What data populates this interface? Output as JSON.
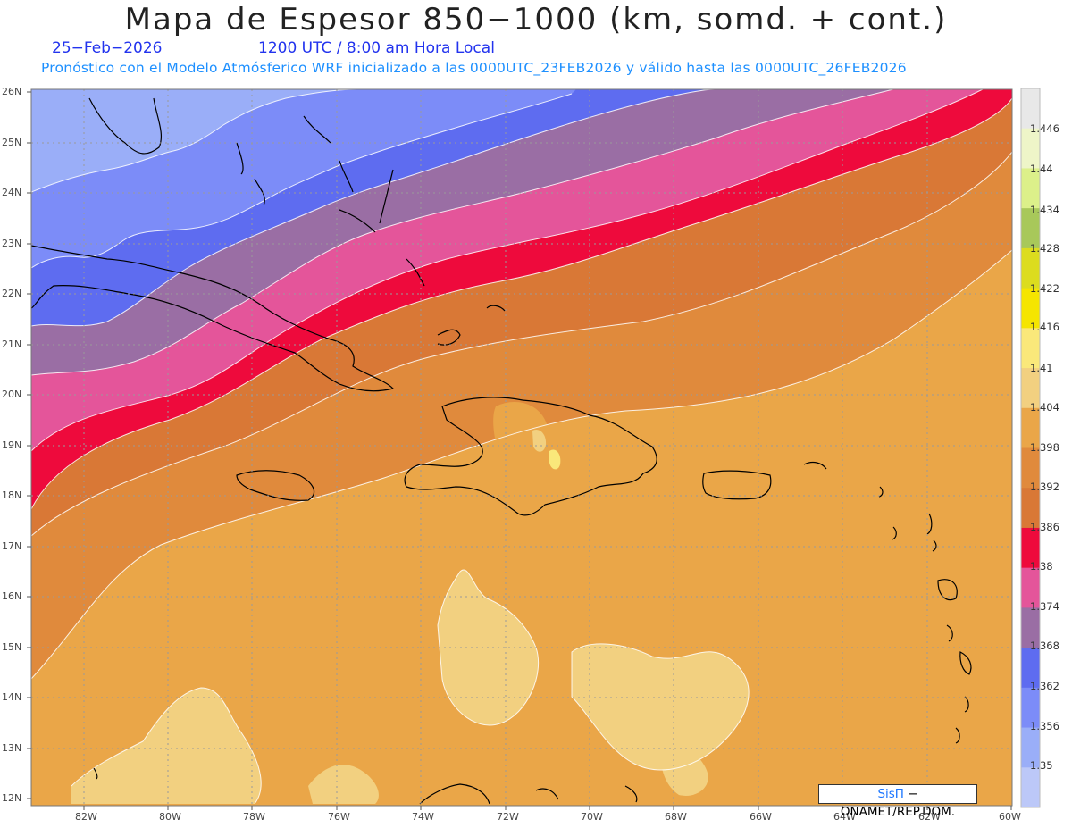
{
  "header": {
    "title": "Mapa de Espesor 850−1000 (km, somd. + cont.)",
    "date": "25−Feb−2026",
    "time": "1200 UTC / 8:00 am Hora Local",
    "forecast": "Pronóstico con el Modelo Atmósferico WRF inicializado a las 0000UTC_23FEB2026 y válido hasta las  0000UTC_26FEB2026"
  },
  "credit": {
    "brand": "SisΠ",
    "rest": " − ONAMET/REP.DOM."
  },
  "axes": {
    "lat_labels": [
      "26N",
      "25N",
      "24N",
      "23N",
      "22N",
      "21N",
      "20N",
      "19N",
      "18N",
      "17N",
      "16N",
      "15N",
      "14N",
      "13N",
      "12N"
    ],
    "lon_labels": [
      "82W",
      "80W",
      "78W",
      "76W",
      "74W",
      "72W",
      "70W",
      "68W",
      "66W",
      "64W",
      "62W",
      "60W"
    ]
  },
  "colorbar": {
    "labels": [
      "1.446",
      "1.44",
      "1.434",
      "1.428",
      "1.422",
      "1.416",
      "1.41",
      "1.404",
      "1.398",
      "1.392",
      "1.386",
      "1.38",
      "1.374",
      "1.368",
      "1.362",
      "1.356",
      "1.35"
    ],
    "colors": [
      "#e8e8e8",
      "#eef5c8",
      "#dcf08a",
      "#a8c85a",
      "#dcdc1e",
      "#f5e500",
      "#fae87a",
      "#f2d080",
      "#eaa648",
      "#e08a3c",
      "#d97836",
      "#ee0a3c",
      "#e4559a",
      "#9a6ea4",
      "#5e6cf0",
      "#7c8cf8",
      "#9aaef8",
      "#bcc8f8"
    ]
  },
  "chart_data": {
    "type": "heatmap",
    "title": "Mapa de Espesor 850−1000 (km, somd. + cont.)",
    "lon_range": [
      -83.2,
      -60
    ],
    "lat_range": [
      11.8,
      26.1
    ],
    "levels_km": [
      1.35,
      1.356,
      1.362,
      1.368,
      1.374,
      1.38,
      1.386,
      1.392,
      1.398,
      1.404,
      1.41,
      1.416,
      1.422,
      1.428,
      1.434,
      1.44,
      1.446
    ],
    "grid": true
  }
}
